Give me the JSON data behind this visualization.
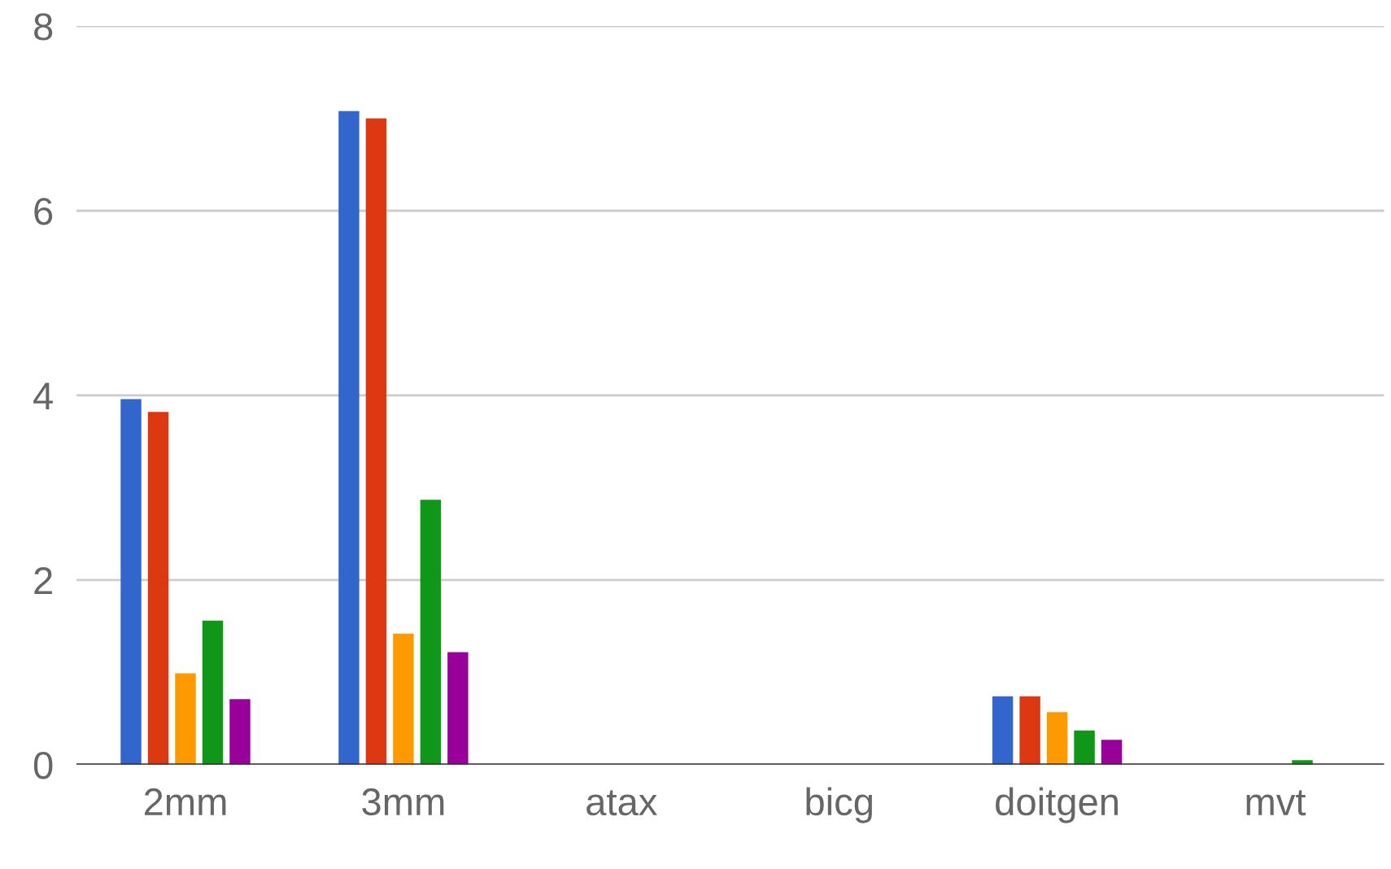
{
  "chart_data": {
    "type": "bar",
    "categories": [
      "2mm",
      "3mm",
      "atax",
      "bicg",
      "doitgen",
      "mvt"
    ],
    "series": [
      {
        "color": "#3366cc",
        "values": [
          3.96,
          7.08,
          0,
          0,
          0.74,
          0
        ]
      },
      {
        "color": "#dc3912",
        "values": [
          3.82,
          7.0,
          0,
          0,
          0.74,
          0
        ]
      },
      {
        "color": "#ff9900",
        "values": [
          0.99,
          1.42,
          0,
          0,
          0.57,
          0
        ]
      },
      {
        "color": "#109618",
        "values": [
          1.56,
          2.87,
          0,
          0,
          0.37,
          0.05
        ]
      },
      {
        "color": "#990099",
        "values": [
          0.71,
          1.22,
          0,
          0,
          0.27,
          0
        ]
      }
    ],
    "ylim": [
      0,
      8
    ],
    "yticks": [
      0,
      2,
      4,
      6,
      8
    ],
    "grid": "y"
  }
}
